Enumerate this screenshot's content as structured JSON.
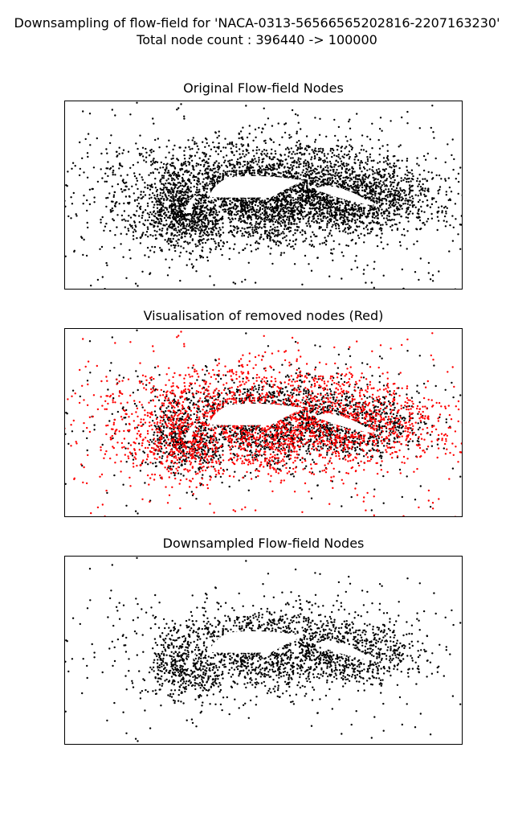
{
  "figure": {
    "title_line1": "Downsampling of flow-field for 'NACA-0313-56566565202816-2207163230'",
    "title_line2": "Total node count : 396440 -> 100000"
  },
  "colors": {
    "kept_node": "#000000",
    "removed_node": "#ff0000",
    "airfoil_fill": "#ffffff",
    "frame": "#000000"
  },
  "chart_data": [
    {
      "type": "scatter",
      "title": "Original Flow-field Nodes",
      "xlabel": "",
      "ylabel": "",
      "axes_ticks": false,
      "grid": false,
      "series": [
        {
          "color": "#000000"
        }
      ]
    },
    {
      "type": "scatter",
      "title": "Visualisation of removed nodes (Red)",
      "xlabel": "",
      "ylabel": "",
      "axes_ticks": false,
      "grid": false,
      "series": [
        {
          "color": "#000000"
        },
        {
          "color": "#ff0000"
        }
      ]
    },
    {
      "type": "scatter",
      "title": "Downsampled Flow-field Nodes",
      "xlabel": "",
      "ylabel": "",
      "axes_ticks": false,
      "grid": false,
      "series": [
        {
          "color": "#000000"
        }
      ]
    }
  ]
}
